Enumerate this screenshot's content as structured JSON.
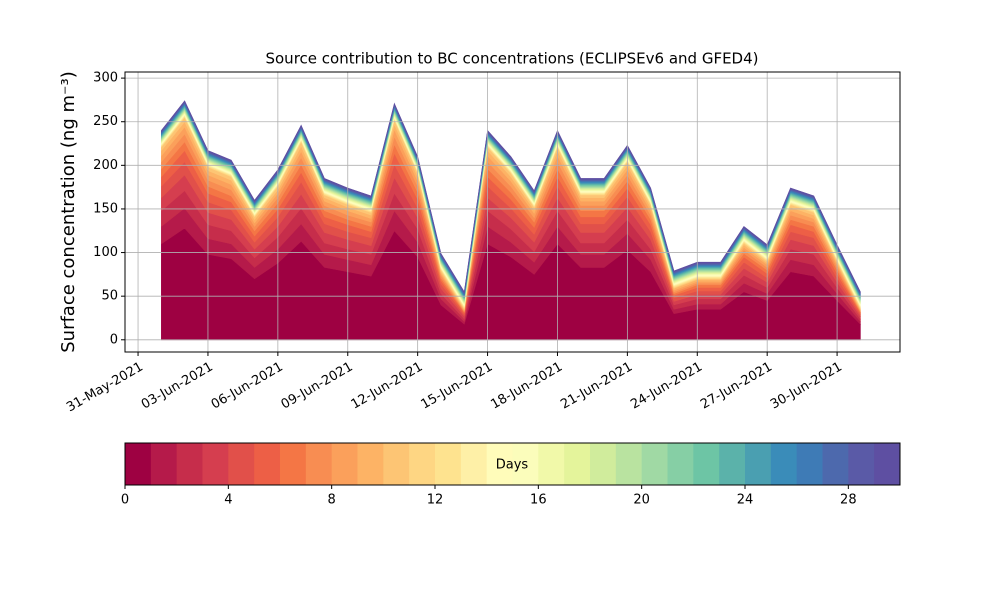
{
  "chart_data": {
    "type": "stacked_area",
    "title": "Source contribution to BC concentrations (ECLIPSEv6 and GFED4)",
    "y_label": "Surface concentration (ng m⁻³)",
    "x": [
      1,
      2,
      3,
      4,
      5,
      6,
      7,
      8,
      9,
      10,
      11,
      12,
      13,
      14,
      15,
      16,
      17,
      18,
      19,
      20,
      21,
      22,
      23,
      24,
      25,
      26,
      27,
      28,
      29,
      30,
      31
    ],
    "xlim": [
      -0.56,
      32.7
    ],
    "xticks": [
      {
        "value": 0,
        "label": "31-May-2021"
      },
      {
        "value": 3,
        "label": "03-Jun-2021"
      },
      {
        "value": 6,
        "label": "06-Jun-2021"
      },
      {
        "value": 9,
        "label": "09-Jun-2021"
      },
      {
        "value": 12,
        "label": "12-Jun-2021"
      },
      {
        "value": 15,
        "label": "15-Jun-2021"
      },
      {
        "value": 18,
        "label": "18-Jun-2021"
      },
      {
        "value": 21,
        "label": "21-Jun-2021"
      },
      {
        "value": 24,
        "label": "24-Jun-2021"
      },
      {
        "value": 27,
        "label": "27-Jun-2021"
      },
      {
        "value": 30,
        "label": "30-Jun-2021"
      }
    ],
    "ylim": [
      -14,
      307
    ],
    "yticks": [
      0,
      50,
      100,
      150,
      200,
      250,
      300
    ],
    "grid": true,
    "colorbar": {
      "label": "Days",
      "lim": [
        0,
        30
      ],
      "ticks": [
        0,
        4,
        8,
        12,
        16,
        20,
        24,
        28
      ]
    },
    "series": [
      {
        "color": "#9e0142",
        "values": [
          110,
          128,
          98,
          93,
          70,
          88,
          113,
          83,
          78,
          73,
          125,
          95,
          40,
          18,
          110,
          95,
          75,
          110,
          83,
          83,
          103,
          78,
          30,
          35,
          35,
          55,
          45,
          78,
          73,
          45,
          18
        ]
      },
      {
        "color": "#b51a4a",
        "values": [
          20,
          23,
          18,
          17,
          13,
          16,
          20,
          15,
          14,
          13,
          23,
          17,
          7,
          3,
          20,
          17,
          14,
          20,
          15,
          15,
          19,
          14,
          5,
          6,
          6,
          10,
          8,
          14,
          13,
          8,
          3
        ]
      },
      {
        "color": "#c62d4b",
        "values": [
          18,
          20,
          16,
          15,
          11,
          14,
          18,
          13,
          12,
          12,
          20,
          15,
          6,
          3,
          18,
          15,
          12,
          18,
          13,
          13,
          16,
          12,
          5,
          6,
          6,
          9,
          7,
          12,
          12,
          7,
          3
        ]
      },
      {
        "color": "#d53e4f",
        "values": [
          15,
          18,
          14,
          13,
          10,
          12,
          16,
          12,
          11,
          10,
          18,
          13,
          6,
          3,
          15,
          13,
          11,
          15,
          12,
          12,
          14,
          11,
          4,
          5,
          5,
          8,
          6,
          11,
          10,
          6,
          3
        ]
      },
      {
        "color": "#e1504a",
        "values": [
          13,
          15,
          12,
          11,
          8,
          11,
          14,
          10,
          9,
          9,
          15,
          11,
          5,
          2,
          13,
          11,
          9,
          13,
          10,
          10,
          12,
          9,
          4,
          4,
          4,
          7,
          5,
          9,
          9,
          5,
          2
        ]
      },
      {
        "color": "#ed5f46",
        "values": [
          11,
          13,
          10,
          9,
          7,
          9,
          11,
          8,
          8,
          7,
          13,
          10,
          4,
          2,
          11,
          10,
          8,
          11,
          8,
          8,
          10,
          8,
          3,
          4,
          4,
          6,
          5,
          8,
          7,
          5,
          2
        ]
      },
      {
        "color": "#f47645",
        "values": [
          9,
          10,
          8,
          7,
          6,
          7,
          9,
          7,
          6,
          6,
          10,
          8,
          3,
          1,
          9,
          8,
          6,
          9,
          7,
          7,
          8,
          6,
          2,
          3,
          3,
          4,
          4,
          6,
          6,
          4,
          1
        ]
      },
      {
        "color": "#f88d52",
        "values": [
          8,
          9,
          7,
          7,
          5,
          6,
          8,
          6,
          5,
          5,
          9,
          7,
          3,
          1,
          8,
          7,
          5,
          8,
          6,
          6,
          7,
          5,
          2,
          2,
          2,
          4,
          3,
          5,
          5,
          3,
          1
        ]
      },
      {
        "color": "#fba05b",
        "values": [
          7,
          8,
          6,
          6,
          4,
          5,
          7,
          5,
          5,
          4,
          8,
          6,
          2,
          1,
          7,
          6,
          5,
          7,
          5,
          5,
          6,
          5,
          2,
          2,
          2,
          3,
          3,
          5,
          4,
          3,
          1
        ]
      },
      {
        "color": "#fdb365",
        "values": [
          6,
          6,
          5,
          5,
          4,
          4,
          6,
          4,
          4,
          4,
          6,
          5,
          2,
          1,
          6,
          5,
          4,
          6,
          4,
          4,
          5,
          4,
          2,
          2,
          2,
          3,
          2,
          4,
          4,
          2,
          1
        ]
      },
      {
        "color": "#fdc574",
        "values": [
          4,
          5,
          4,
          4,
          3,
          4,
          5,
          3,
          3,
          3,
          5,
          4,
          2,
          1,
          4,
          4,
          3,
          4,
          3,
          3,
          4,
          3,
          1,
          1,
          1,
          2,
          2,
          3,
          3,
          2,
          1
        ]
      },
      {
        "color": "#fed683",
        "values": [
          1,
          1,
          1,
          1,
          1,
          1,
          1,
          1,
          1,
          1,
          1,
          1,
          1,
          1,
          1,
          1,
          1,
          1,
          1,
          1,
          1,
          1,
          1,
          1,
          1,
          1,
          1,
          1,
          1,
          1,
          1
        ]
      },
      {
        "color": "#fee38f",
        "values": [
          1,
          1,
          1,
          1,
          1,
          1,
          1,
          1,
          1,
          1,
          1,
          1,
          1,
          1,
          1,
          1,
          1,
          1,
          1,
          1,
          1,
          1,
          1,
          1,
          1,
          1,
          1,
          1,
          1,
          1,
          1
        ]
      },
      {
        "color": "#fef0a7",
        "values": [
          1,
          1,
          1,
          1,
          1,
          1,
          1,
          1,
          1,
          1,
          1,
          1,
          1,
          1,
          1,
          1,
          1,
          1,
          1,
          1,
          1,
          1,
          1,
          1,
          1,
          1,
          1,
          1,
          1,
          1,
          1
        ]
      },
      {
        "color": "#fffcba",
        "values": [
          1,
          1,
          1,
          1,
          1,
          1,
          1,
          1,
          1,
          1,
          1,
          1,
          1,
          1,
          1,
          1,
          1,
          1,
          1,
          1,
          1,
          1,
          1,
          1,
          1,
          1,
          1,
          1,
          1,
          1,
          1
        ]
      },
      {
        "color": "#fbfdbb",
        "values": [
          1,
          1,
          1,
          1,
          1,
          1,
          1,
          1,
          1,
          1,
          1,
          1,
          1,
          1,
          1,
          1,
          1,
          1,
          1,
          1,
          1,
          1,
          1,
          1,
          1,
          1,
          1,
          1,
          1,
          1,
          1
        ]
      },
      {
        "color": "#f1f9a9",
        "values": [
          1,
          1,
          1,
          1,
          1,
          1,
          1,
          1,
          1,
          1,
          1,
          1,
          1,
          1,
          1,
          1,
          1,
          1,
          1,
          1,
          1,
          1,
          1,
          1,
          1,
          1,
          1,
          1,
          1,
          1,
          1
        ]
      },
      {
        "color": "#e4f49b",
        "values": [
          1,
          1,
          1,
          1,
          1,
          1,
          1,
          1,
          1,
          1,
          1,
          1,
          1,
          1,
          1,
          1,
          1,
          1,
          1,
          1,
          1,
          1,
          1,
          1,
          1,
          1,
          1,
          1,
          1,
          1,
          1
        ]
      },
      {
        "color": "#d0ec9c",
        "values": [
          1,
          1,
          1,
          1,
          1,
          1,
          1,
          1,
          1,
          1,
          1,
          1,
          1,
          1,
          1,
          1,
          1,
          1,
          1,
          1,
          1,
          1,
          1,
          1,
          1,
          1,
          1,
          1,
          1,
          1,
          1
        ]
      },
      {
        "color": "#b9e3a0",
        "values": [
          1,
          1,
          1,
          1,
          1,
          1,
          1,
          1,
          1,
          1,
          1,
          1,
          1,
          1,
          1,
          1,
          1,
          1,
          1,
          1,
          1,
          1,
          1,
          1,
          1,
          1,
          1,
          1,
          1,
          1,
          1
        ]
      },
      {
        "color": "#a0d9a4",
        "values": [
          1,
          1,
          1,
          1,
          1,
          1,
          1,
          1,
          1,
          1,
          1,
          1,
          1,
          1,
          1,
          1,
          1,
          1,
          1,
          1,
          1,
          1,
          1,
          1,
          1,
          1,
          1,
          1,
          1,
          1,
          1
        ]
      },
      {
        "color": "#86cfa5",
        "values": [
          1,
          1,
          1,
          1,
          1,
          1,
          1,
          1,
          1,
          1,
          1,
          1,
          1,
          1,
          1,
          1,
          1,
          1,
          1,
          1,
          1,
          1,
          1,
          1,
          1,
          1,
          1,
          1,
          1,
          1,
          1
        ]
      },
      {
        "color": "#6dc5a5",
        "values": [
          1,
          1,
          1,
          1,
          1,
          1,
          1,
          1,
          1,
          1,
          1,
          1,
          1,
          1,
          1,
          1,
          1,
          1,
          1,
          1,
          1,
          1,
          1,
          1,
          1,
          1,
          1,
          1,
          1,
          1,
          1
        ]
      },
      {
        "color": "#5bb2aa",
        "values": [
          1,
          1,
          1,
          1,
          1,
          1,
          1,
          1,
          1,
          1,
          1,
          1,
          1,
          1,
          1,
          1,
          1,
          1,
          1,
          1,
          1,
          1,
          1,
          1,
          1,
          1,
          1,
          1,
          1,
          1,
          1
        ]
      },
      {
        "color": "#4a9fb1",
        "values": [
          1,
          1,
          1,
          1,
          1,
          1,
          1,
          1,
          1,
          1,
          1,
          1,
          1,
          1,
          1,
          1,
          1,
          1,
          1,
          1,
          1,
          1,
          1,
          1,
          1,
          1,
          1,
          1,
          1,
          1,
          1
        ]
      },
      {
        "color": "#3a8cb9",
        "values": [
          1,
          1,
          1,
          1,
          1,
          1,
          1,
          1,
          1,
          1,
          1,
          1,
          1,
          1,
          1,
          1,
          1,
          1,
          1,
          1,
          1,
          1,
          1,
          1,
          1,
          1,
          1,
          1,
          1,
          1,
          1
        ]
      },
      {
        "color": "#3e7bb6",
        "values": [
          1,
          1,
          1,
          1,
          1,
          1,
          1,
          1,
          1,
          1,
          1,
          1,
          1,
          1,
          1,
          1,
          1,
          1,
          1,
          1,
          1,
          1,
          1,
          1,
          1,
          1,
          1,
          1,
          1,
          1,
          1
        ]
      },
      {
        "color": "#4d69ad",
        "values": [
          1,
          1,
          1,
          1,
          1,
          1,
          1,
          1,
          1,
          1,
          1,
          1,
          1,
          1,
          1,
          1,
          1,
          1,
          1,
          1,
          1,
          1,
          1,
          1,
          1,
          1,
          1,
          1,
          1,
          1,
          1
        ]
      },
      {
        "color": "#5a5aa7",
        "values": [
          1,
          1,
          1,
          1,
          1,
          1,
          1,
          1,
          1,
          1,
          1,
          1,
          1,
          1,
          1,
          1,
          1,
          1,
          1,
          1,
          1,
          1,
          1,
          1,
          1,
          1,
          1,
          1,
          1,
          1,
          1
        ]
      },
      {
        "color": "#5e4fa2",
        "values": [
          1,
          1,
          1,
          1,
          1,
          1,
          1,
          1,
          1,
          1,
          1,
          1,
          1,
          1,
          1,
          1,
          1,
          1,
          1,
          1,
          1,
          1,
          1,
          1,
          1,
          1,
          1,
          1,
          1,
          1,
          1
        ]
      }
    ]
  }
}
